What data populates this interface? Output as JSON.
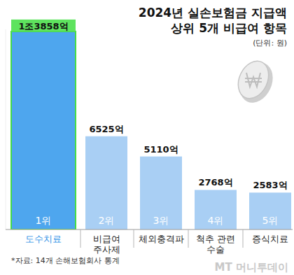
{
  "chart_data": {
    "type": "bar",
    "title": "2024년 실손보험금 지급액",
    "subtitle": "상위 5개 비급여 항목",
    "note": "(단위: 원)",
    "categories": [
      "도수치료",
      "비급여\n주사제",
      "체외충격파",
      "척추 관련\n수술",
      "증식치료"
    ],
    "values": [
      13858,
      6525,
      5110,
      2768,
      2583
    ],
    "value_labels": [
      "1조3858억",
      "6525억",
      "5110억",
      "2768억",
      "2583억"
    ],
    "annotations": [
      "1위",
      "2위",
      "3위",
      "4위",
      "5위"
    ],
    "colors": [
      "#4ea6ee",
      "#a9cff4",
      "#a9cff4",
      "#a9cff4",
      "#a9cff4"
    ],
    "ylim": [
      0,
      14000
    ],
    "data_labels": true,
    "tick_labels": "x",
    "source": "*자료: 14개 손해보험회사 통계",
    "credit": "MT 머니투데이"
  }
}
